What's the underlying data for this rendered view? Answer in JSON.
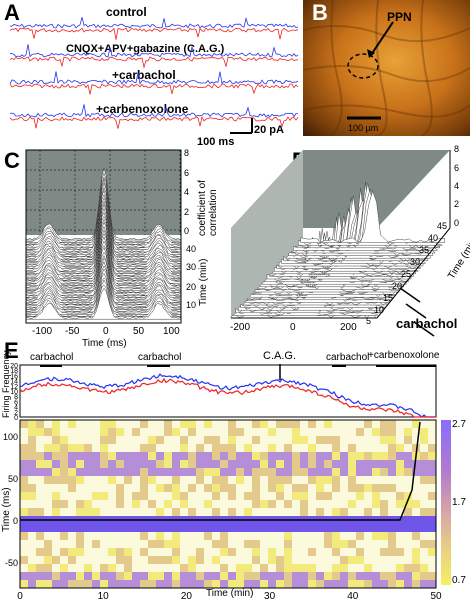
{
  "panels": {
    "A": {
      "label": "A",
      "conditions": [
        "control",
        "CNQX+APV+gabazine (C.A.G.)",
        "+carbachol",
        "+carbenoxolone"
      ],
      "scalebar_time": "100 ms",
      "scalebar_current": "20 pA",
      "colors": {
        "trace1": "#2233ee",
        "trace2": "#ee2222"
      }
    },
    "B": {
      "label": "B",
      "region_label": "PPN",
      "scalebar": "100 µm"
    },
    "C": {
      "label": "C",
      "y_axis_right": "coefficient of\ncorrelation",
      "y_axis_time": "Time (min)",
      "x_axis": "Time (ms)",
      "x_ticks": [
        "-100",
        "-50",
        "0",
        "50",
        "100"
      ],
      "coef_ticks": [
        "8",
        "6",
        "4",
        "2",
        "0"
      ],
      "time_ticks": [
        "40",
        "30",
        "20",
        "10"
      ]
    },
    "D": {
      "label": "D",
      "x_ticks": [
        "-200",
        "0",
        "200"
      ],
      "coef_ticks": [
        "8",
        "6",
        "4",
        "2",
        "0"
      ],
      "time_ticks": [
        "45",
        "40",
        "35",
        "30",
        "25",
        "20",
        "15",
        "10",
        "5"
      ],
      "time_axis": "Time (min)",
      "annotation": "carbachol"
    },
    "E": {
      "label": "E",
      "top_y_axis": "Firing Frequency",
      "top_y_ticks": [
        "20",
        "18",
        "16",
        "14",
        "12",
        "10",
        "8",
        "6",
        "4",
        "2",
        "0"
      ],
      "bottom_y_axis": "Time (ms)",
      "bottom_y_ticks": [
        "100",
        "50",
        "0",
        "-50",
        "-100"
      ],
      "x_axis": "Time (min)",
      "x_ticks": [
        "0",
        "10",
        "20",
        "30",
        "40",
        "50"
      ],
      "colorbar_ticks": [
        "2.7",
        "1.7",
        "0.7"
      ],
      "annotations": {
        "carbachol_1": "carbachol",
        "carbachol_2": "carbachol",
        "cag": "C.A.G.",
        "carbachol_3": "carbachol",
        "carbenoxolone": "+carbenoxolone"
      }
    }
  }
}
